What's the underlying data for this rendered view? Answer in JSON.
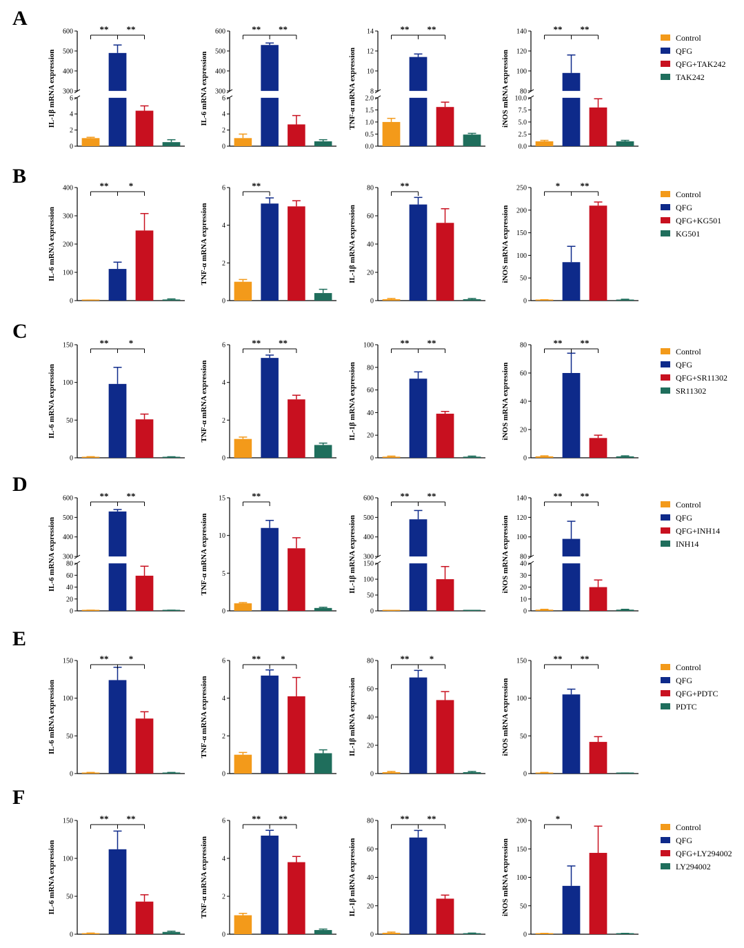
{
  "colors": {
    "Control": "#f39a1a",
    "QFG": "#0e2a8a",
    "inhibitor": "#c8101f",
    "inhibitor_only": "#1f6e5c"
  },
  "figure": {
    "rows": [
      {
        "letter": "A",
        "legend": [
          "Control",
          "QFG",
          "QFG+TAK242",
          "TAK242"
        ]
      },
      {
        "letter": "B",
        "legend": [
          "Control",
          "QFG",
          "QFG+KG501",
          "KG501"
        ]
      },
      {
        "letter": "C",
        "legend": [
          "Control",
          "QFG",
          "QFG+SR11302",
          "SR11302"
        ]
      },
      {
        "letter": "D",
        "legend": [
          "Control",
          "QFG",
          "QFG+INH14",
          "INH14"
        ]
      },
      {
        "letter": "E",
        "legend": [
          "Control",
          "QFG",
          "QFG+PDTC",
          "PDTC"
        ]
      },
      {
        "letter": "F",
        "legend": [
          "Control",
          "QFG",
          "QFG+LY294002",
          "LY294002"
        ]
      }
    ]
  },
  "chart_data": [
    {
      "panel": "A",
      "type": "bar",
      "ylabel": "IL-1β mRNA expression",
      "categories": [
        "Control",
        "QFG",
        "QFG+TAK242",
        "TAK242"
      ],
      "values": [
        1.0,
        490,
        4.4,
        0.5
      ],
      "errors": [
        0.1,
        40,
        0.6,
        0.3
      ],
      "broken_axis": {
        "lower": [
          0,
          6
        ],
        "upper": [
          300,
          600
        ],
        "lower_ticks": [
          0,
          2,
          4,
          6
        ],
        "upper_ticks": [
          300,
          400,
          500,
          600
        ]
      },
      "significance": [
        {
          "pair": [
            1,
            0
          ],
          "label": "**"
        },
        {
          "pair": [
            1,
            2
          ],
          "label": "**"
        }
      ]
    },
    {
      "panel": "A",
      "type": "bar",
      "ylabel": "IL-6 mRNA expression",
      "categories": [
        "Control",
        "QFG",
        "QFG+TAK242",
        "TAK242"
      ],
      "values": [
        1.0,
        530,
        2.7,
        0.6
      ],
      "errors": [
        0.5,
        10,
        1.1,
        0.2
      ],
      "broken_axis": {
        "lower": [
          0,
          6
        ],
        "upper": [
          300,
          600
        ],
        "lower_ticks": [
          0,
          2,
          4,
          6
        ],
        "upper_ticks": [
          300,
          400,
          500,
          600
        ]
      },
      "significance": [
        {
          "pair": [
            1,
            0
          ],
          "label": "**"
        },
        {
          "pair": [
            1,
            2
          ],
          "label": "**"
        }
      ]
    },
    {
      "panel": "A",
      "type": "bar",
      "ylabel": "TNF-α mRNA expression",
      "categories": [
        "Control",
        "QFG",
        "QFG+TAK242",
        "TAK242"
      ],
      "values": [
        1.0,
        11.4,
        1.62,
        0.48
      ],
      "errors": [
        0.15,
        0.3,
        0.2,
        0.05
      ],
      "broken_axis": {
        "lower": [
          0,
          2
        ],
        "upper": [
          8,
          14
        ],
        "lower_ticks": [
          0.0,
          0.5,
          1.0,
          1.5,
          2.0
        ],
        "upper_ticks": [
          8,
          10,
          12,
          14
        ]
      },
      "significance": [
        {
          "pair": [
            1,
            0
          ],
          "label": "**"
        },
        {
          "pair": [
            1,
            2
          ],
          "label": "**"
        }
      ]
    },
    {
      "panel": "A",
      "type": "bar",
      "ylabel": "iNOS mRNA expression",
      "categories": [
        "Control",
        "QFG",
        "QFG+TAK242",
        "TAK242"
      ],
      "values": [
        1.0,
        98,
        8.0,
        1.0
      ],
      "errors": [
        0.2,
        18,
        1.8,
        0.2
      ],
      "broken_axis": {
        "lower": [
          0,
          10
        ],
        "upper": [
          80,
          140
        ],
        "lower_ticks": [
          0.0,
          2.5,
          5.0,
          7.5,
          10.0
        ],
        "upper_ticks": [
          80,
          100,
          120,
          140
        ]
      },
      "significance": [
        {
          "pair": [
            1,
            0
          ],
          "label": "**"
        },
        {
          "pair": [
            1,
            2
          ],
          "label": "**"
        }
      ]
    },
    {
      "panel": "B",
      "type": "bar",
      "ylabel": "IL-6 mRNA expression",
      "categories": [
        "Control",
        "QFG",
        "QFG+KG501",
        "KG501"
      ],
      "values": [
        1,
        112,
        248,
        4
      ],
      "errors": [
        1,
        24,
        60,
        2
      ],
      "ylim": [
        0,
        400
      ],
      "yticks": [
        0,
        100,
        200,
        300,
        400
      ],
      "significance": [
        {
          "pair": [
            1,
            0
          ],
          "label": "**"
        },
        {
          "pair": [
            1,
            2
          ],
          "label": "*"
        }
      ]
    },
    {
      "panel": "B",
      "type": "bar",
      "ylabel": "TNF-α mRNA expression",
      "categories": [
        "Control",
        "QFG",
        "QFG+KG501",
        "KG501"
      ],
      "values": [
        1.0,
        5.15,
        5.0,
        0.4
      ],
      "errors": [
        0.12,
        0.3,
        0.3,
        0.2
      ],
      "ylim": [
        0,
        6
      ],
      "yticks": [
        0,
        2,
        4,
        6
      ],
      "significance": [
        {
          "pair": [
            1,
            0
          ],
          "label": "**"
        }
      ]
    },
    {
      "panel": "B",
      "type": "bar",
      "ylabel": "IL-1β mRNA expression",
      "categories": [
        "Control",
        "QFG",
        "QFG+KG501",
        "KG501"
      ],
      "values": [
        1,
        68,
        55,
        1
      ],
      "errors": [
        0.5,
        5,
        10,
        0.5
      ],
      "ylim": [
        0,
        80
      ],
      "yticks": [
        0,
        20,
        40,
        60,
        80
      ],
      "significance": [
        {
          "pair": [
            1,
            0
          ],
          "label": "**"
        }
      ]
    },
    {
      "panel": "B",
      "type": "bar",
      "ylabel": "iNOS mRNA expression",
      "categories": [
        "Control",
        "QFG",
        "QFG+KG501",
        "KG501"
      ],
      "values": [
        1,
        85,
        210,
        2
      ],
      "errors": [
        1,
        35,
        8,
        1
      ],
      "ylim": [
        0,
        250
      ],
      "yticks": [
        0,
        50,
        100,
        150,
        200,
        250
      ],
      "significance": [
        {
          "pair": [
            1,
            0
          ],
          "label": "*"
        },
        {
          "pair": [
            1,
            2
          ],
          "label": "**"
        }
      ]
    },
    {
      "panel": "C",
      "type": "bar",
      "ylabel": "IL-6 mRNA expression",
      "categories": [
        "Control",
        "QFG",
        "QFG+SR11302",
        "SR11302"
      ],
      "values": [
        1,
        98,
        51,
        1
      ],
      "errors": [
        0.5,
        22,
        7,
        0.4
      ],
      "ylim": [
        0,
        150
      ],
      "yticks": [
        0,
        50,
        100,
        150
      ],
      "significance": [
        {
          "pair": [
            1,
            0
          ],
          "label": "**"
        },
        {
          "pair": [
            1,
            2
          ],
          "label": "*"
        }
      ]
    },
    {
      "panel": "C",
      "type": "bar",
      "ylabel": "TNF-α mRNA expression",
      "categories": [
        "Control",
        "QFG",
        "QFG+SR11302",
        "SR11302"
      ],
      "values": [
        1.0,
        5.3,
        3.1,
        0.68
      ],
      "errors": [
        0.1,
        0.15,
        0.22,
        0.1
      ],
      "ylim": [
        0,
        6
      ],
      "yticks": [
        0,
        2,
        4,
        6
      ],
      "significance": [
        {
          "pair": [
            1,
            0
          ],
          "label": "**"
        },
        {
          "pair": [
            1,
            2
          ],
          "label": "**"
        }
      ]
    },
    {
      "panel": "C",
      "type": "bar",
      "ylabel": "IL-1β mRNA expression",
      "categories": [
        "Control",
        "QFG",
        "QFG+SR11302",
        "SR11302"
      ],
      "values": [
        1,
        70,
        39,
        1
      ],
      "errors": [
        0.5,
        6,
        2,
        0.5
      ],
      "ylim": [
        0,
        100
      ],
      "yticks": [
        0,
        20,
        40,
        60,
        80,
        100
      ],
      "significance": [
        {
          "pair": [
            1,
            0
          ],
          "label": "**"
        },
        {
          "pair": [
            1,
            2
          ],
          "label": "**"
        }
      ]
    },
    {
      "panel": "C",
      "type": "bar",
      "ylabel": "iNOS mRNA expression",
      "categories": [
        "Control",
        "QFG",
        "QFG+SR11302",
        "SR11302"
      ],
      "values": [
        1,
        60,
        14,
        1
      ],
      "errors": [
        0.4,
        14,
        2,
        0.4
      ],
      "ylim": [
        0,
        80
      ],
      "yticks": [
        0,
        20,
        40,
        60,
        80
      ],
      "significance": [
        {
          "pair": [
            1,
            0
          ],
          "label": "**"
        },
        {
          "pair": [
            1,
            2
          ],
          "label": "**"
        }
      ]
    },
    {
      "panel": "D",
      "type": "bar",
      "ylabel": "IL-6 mRNA expression",
      "categories": [
        "Control",
        "QFG",
        "QFG+INH14",
        "INH14"
      ],
      "values": [
        1,
        530,
        74,
        1
      ],
      "errors": [
        0.5,
        10,
        20,
        0.5
      ],
      "broken_axis": {
        "lower": [
          0,
          100
        ],
        "upper": [
          300,
          600
        ],
        "lower_ticks": [
          0,
          20,
          40,
          60,
          80
        ],
        "upper_ticks": [
          300,
          400,
          500,
          600
        ]
      },
      "significance": [
        {
          "pair": [
            1,
            0
          ],
          "label": "**"
        },
        {
          "pair": [
            1,
            2
          ],
          "label": "**"
        }
      ]
    },
    {
      "panel": "D",
      "type": "bar",
      "ylabel": "TNF-α mRNA expression",
      "categories": [
        "Control",
        "QFG",
        "QFG+INH14",
        "INH14"
      ],
      "values": [
        1.0,
        11.0,
        8.3,
        0.38
      ],
      "errors": [
        0.1,
        1.0,
        1.4,
        0.1
      ],
      "ylim": [
        0,
        15
      ],
      "yticks": [
        0,
        5,
        10,
        15
      ],
      "significance": [
        {
          "pair": [
            1,
            0
          ],
          "label": "**"
        }
      ]
    },
    {
      "panel": "D",
      "type": "bar",
      "ylabel": "IL-1β mRNA expression",
      "categories": [
        "Control",
        "QFG",
        "QFG+INH14",
        "INH14"
      ],
      "values": [
        1,
        490,
        100,
        1
      ],
      "errors": [
        0.5,
        45,
        40,
        0.5
      ],
      "broken_axis": {
        "lower": [
          0,
          150
        ],
        "upper": [
          300,
          600
        ],
        "lower_ticks": [
          0,
          50,
          100,
          150
        ],
        "upper_ticks": [
          300,
          400,
          500,
          600
        ]
      },
      "significance": [
        {
          "pair": [
            1,
            0
          ],
          "label": "**"
        },
        {
          "pair": [
            1,
            2
          ],
          "label": "**"
        }
      ]
    },
    {
      "panel": "D",
      "type": "bar",
      "ylabel": "iNOS mRNA expression",
      "categories": [
        "Control",
        "QFG",
        "QFG+INH14",
        "INH14"
      ],
      "values": [
        1,
        98,
        20,
        1
      ],
      "errors": [
        0.3,
        18,
        6,
        0.3
      ],
      "broken_axis": {
        "lower": [
          0,
          40
        ],
        "upper": [
          80,
          140
        ],
        "lower_ticks": [
          0,
          10,
          20,
          30,
          40
        ],
        "upper_ticks": [
          80,
          100,
          120,
          140
        ]
      },
      "significance": [
        {
          "pair": [
            1,
            0
          ],
          "label": "**"
        },
        {
          "pair": [
            1,
            2
          ],
          "label": "**"
        }
      ]
    },
    {
      "panel": "E",
      "type": "bar",
      "ylabel": "IL-6 mRNA expression",
      "categories": [
        "Control",
        "QFG",
        "QFG+PDTC",
        "PDTC"
      ],
      "values": [
        1,
        124,
        73,
        1
      ],
      "errors": [
        0.5,
        17,
        9,
        0.5
      ],
      "ylim": [
        0,
        150
      ],
      "yticks": [
        0,
        50,
        100,
        150
      ],
      "significance": [
        {
          "pair": [
            1,
            0
          ],
          "label": "**"
        },
        {
          "pair": [
            1,
            2
          ],
          "label": "*"
        }
      ]
    },
    {
      "panel": "E",
      "type": "bar",
      "ylabel": "TNF-α mRNA expression",
      "categories": [
        "Control",
        "QFG",
        "QFG+PDTC",
        "PDTC"
      ],
      "values": [
        1.0,
        5.2,
        4.1,
        1.08
      ],
      "errors": [
        0.12,
        0.3,
        1.0,
        0.18
      ],
      "ylim": [
        0,
        6
      ],
      "yticks": [
        0,
        2,
        4,
        6
      ],
      "significance": [
        {
          "pair": [
            1,
            0
          ],
          "label": "**"
        },
        {
          "pair": [
            1,
            2
          ],
          "label": "*"
        }
      ]
    },
    {
      "panel": "E",
      "type": "bar",
      "ylabel": "IL-1β mRNA expression",
      "categories": [
        "Control",
        "QFG",
        "QFG+PDTC",
        "PDTC"
      ],
      "values": [
        1,
        68,
        52,
        1
      ],
      "errors": [
        0.5,
        5,
        6,
        0.5
      ],
      "ylim": [
        0,
        80
      ],
      "yticks": [
        0,
        20,
        40,
        60,
        80
      ],
      "significance": [
        {
          "pair": [
            1,
            0
          ],
          "label": "**"
        },
        {
          "pair": [
            1,
            2
          ],
          "label": "*"
        }
      ]
    },
    {
      "panel": "E",
      "type": "bar",
      "ylabel": "iNOS mRNA expression",
      "categories": [
        "Control",
        "QFG",
        "QFG+PDTC",
        "PDTC"
      ],
      "values": [
        1,
        105,
        42,
        0.5
      ],
      "errors": [
        0.5,
        7,
        7,
        0.3
      ],
      "ylim": [
        0,
        150
      ],
      "yticks": [
        0,
        50,
        100,
        150
      ],
      "significance": [
        {
          "pair": [
            1,
            0
          ],
          "label": "**"
        },
        {
          "pair": [
            1,
            2
          ],
          "label": "**"
        }
      ]
    },
    {
      "panel": "F",
      "type": "bar",
      "ylabel": "IL-6 mRNA expression",
      "categories": [
        "Control",
        "QFG",
        "QFG+LY294002",
        "LY294002"
      ],
      "values": [
        1,
        112,
        43,
        3
      ],
      "errors": [
        0.5,
        24,
        9,
        1
      ],
      "ylim": [
        0,
        150
      ],
      "yticks": [
        0,
        50,
        100,
        150
      ],
      "significance": [
        {
          "pair": [
            1,
            0
          ],
          "label": "**"
        },
        {
          "pair": [
            1,
            2
          ],
          "label": "**"
        }
      ]
    },
    {
      "panel": "F",
      "type": "bar",
      "ylabel": "TNF-α mRNA expression",
      "categories": [
        "Control",
        "QFG",
        "QFG+LY294002",
        "LY294002"
      ],
      "values": [
        1.0,
        5.2,
        3.8,
        0.22
      ],
      "errors": [
        0.1,
        0.28,
        0.3,
        0.05
      ],
      "ylim": [
        0,
        6
      ],
      "yticks": [
        0,
        2,
        4,
        6
      ],
      "significance": [
        {
          "pair": [
            1,
            0
          ],
          "label": "**"
        },
        {
          "pair": [
            1,
            2
          ],
          "label": "**"
        }
      ]
    },
    {
      "panel": "F",
      "type": "bar",
      "ylabel": "IL-1β mRNA expression",
      "categories": [
        "Control",
        "QFG",
        "QFG+LY294002",
        "LY294002"
      ],
      "values": [
        1,
        68,
        25,
        0.5
      ],
      "errors": [
        0.5,
        5,
        2.5,
        0.3
      ],
      "ylim": [
        0,
        80
      ],
      "yticks": [
        0,
        20,
        40,
        60,
        80
      ],
      "significance": [
        {
          "pair": [
            1,
            0
          ],
          "label": "**"
        },
        {
          "pair": [
            1,
            2
          ],
          "label": "**"
        }
      ]
    },
    {
      "panel": "F",
      "type": "bar",
      "ylabel": "iNOS mRNA expression",
      "categories": [
        "Control",
        "QFG",
        "QFG+LY294002",
        "LY294002"
      ],
      "values": [
        1,
        85,
        143,
        1
      ],
      "errors": [
        0.5,
        35,
        47,
        0.5
      ],
      "ylim": [
        0,
        200
      ],
      "yticks": [
        0,
        50,
        100,
        150,
        200
      ],
      "significance": [
        {
          "pair": [
            1,
            0
          ],
          "label": "*"
        }
      ]
    }
  ]
}
